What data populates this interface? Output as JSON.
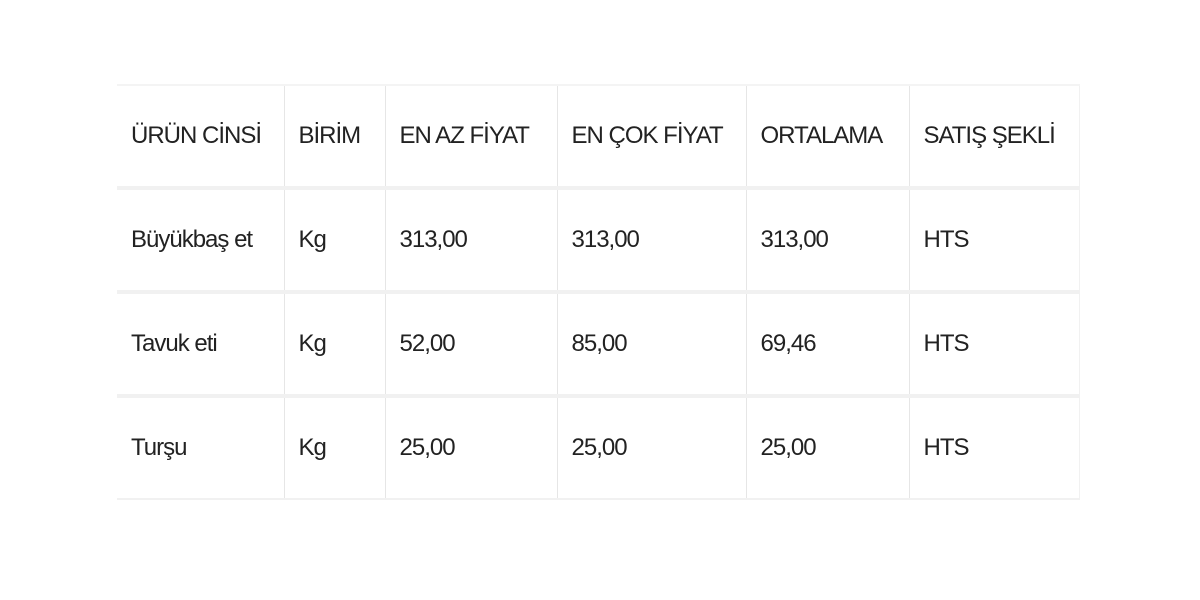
{
  "table": {
    "headers": [
      "ÜRÜN CİNSİ",
      "BİRİM",
      "EN AZ FİYAT",
      "EN ÇOK FİYAT",
      "ORTALAMA",
      "SATIŞ ŞEKLİ"
    ],
    "rows": [
      [
        "Büyükbaş et",
        "Kg",
        "313,00",
        "313,00",
        "313,00",
        "HTS"
      ],
      [
        "Tavuk eti",
        "Kg",
        "52,00",
        "85,00",
        "69,46",
        "HTS"
      ],
      [
        "Turşu",
        "Kg",
        "25,00",
        "25,00",
        "25,00",
        "HTS"
      ]
    ]
  }
}
